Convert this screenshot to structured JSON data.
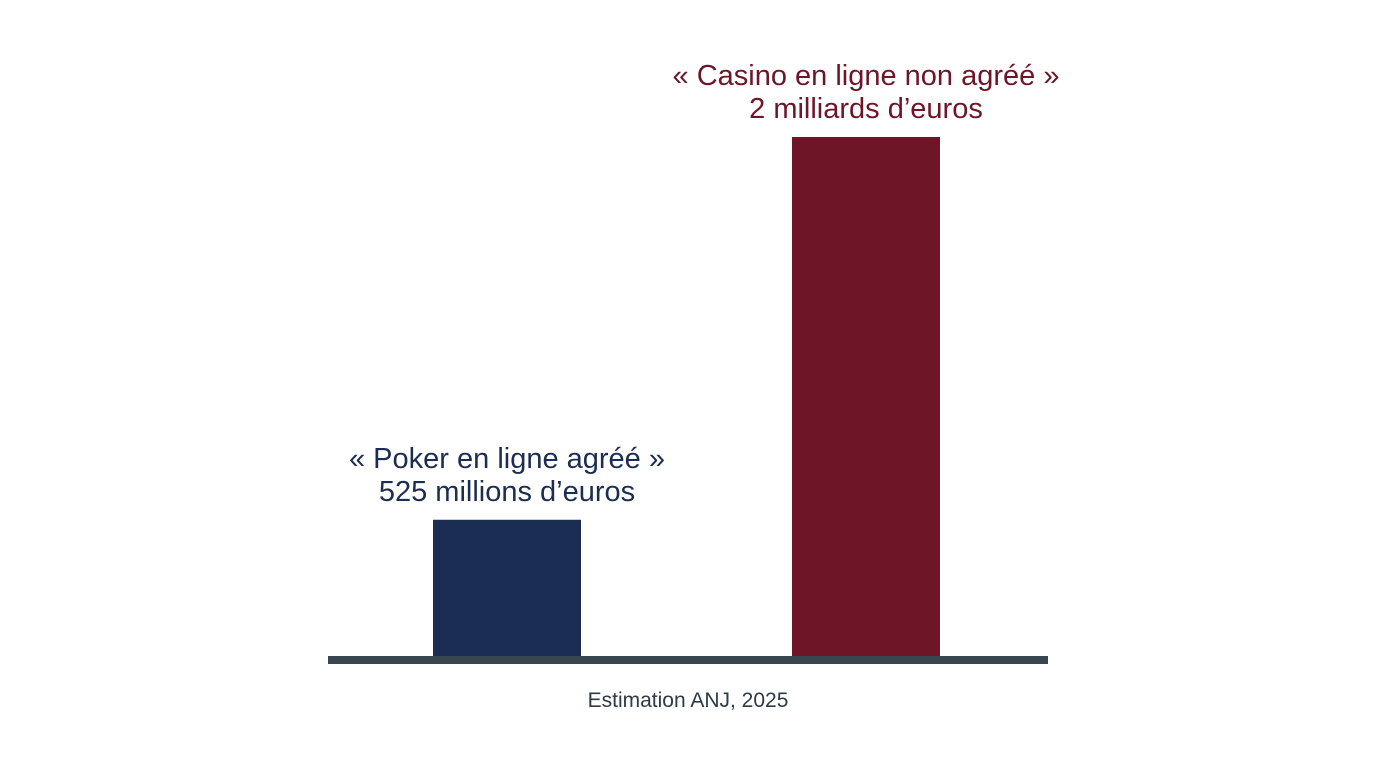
{
  "chart_data": {
    "type": "bar",
    "categories": [
      "« Poker en ligne agréé »",
      "« Casino en ligne non agréé »"
    ],
    "values": [
      525,
      2000
    ],
    "unit": "millions d'euros",
    "value_labels": [
      "525 millions d’euros",
      "2 milliards d’euros"
    ],
    "colors": [
      "#1b2d52",
      "#6e1527"
    ],
    "baseline_color": "#37464f",
    "note_color": "#2e3a44",
    "source": "Estimation ANJ, 2025",
    "ylim": [
      0,
      2000
    ],
    "xlabel": "",
    "ylabel": "",
    "grid": false,
    "legend": "none"
  }
}
